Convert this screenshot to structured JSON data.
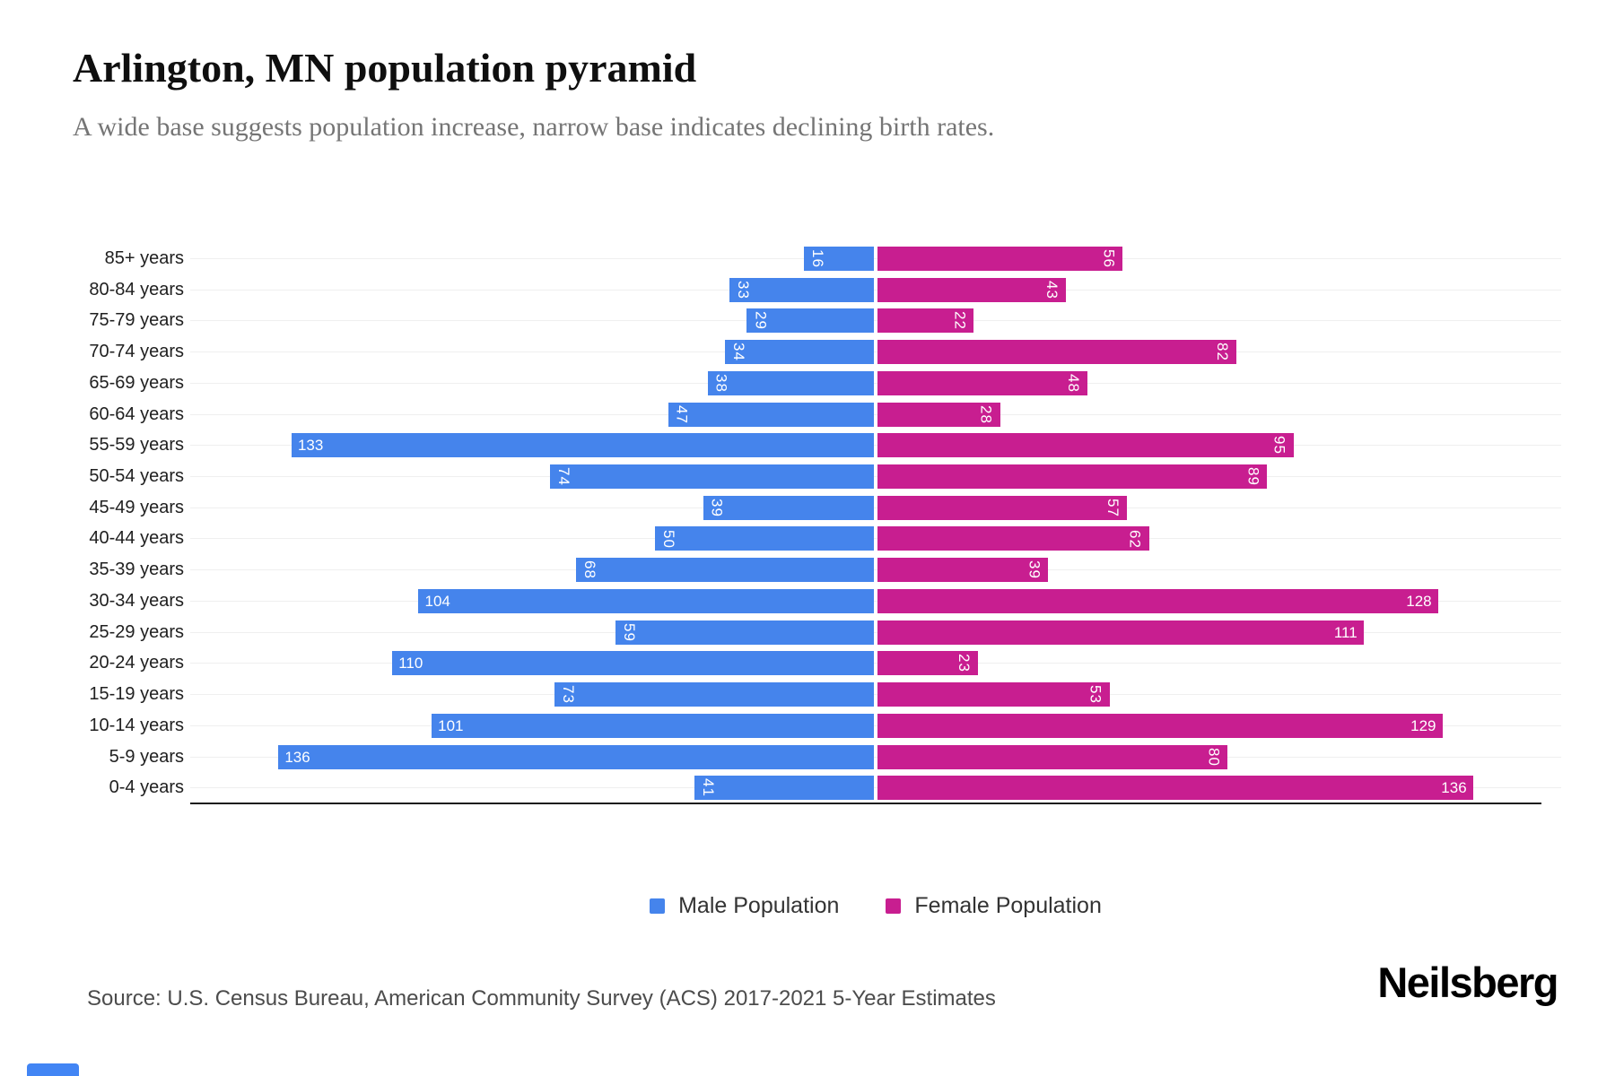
{
  "header": {
    "title": "Arlington, MN population pyramid",
    "subtitle": "A wide base suggests population increase, narrow base indicates declining birth rates."
  },
  "chart_data": {
    "type": "bar",
    "orientation": "horizontal population pyramid, males left / females right",
    "categories": [
      "85+ years",
      "80-84 years",
      "75-79 years",
      "70-74 years",
      "65-69 years",
      "60-64 years",
      "55-59 years",
      "50-54 years",
      "45-49 years",
      "40-44 years",
      "35-39 years",
      "30-34 years",
      "25-29 years",
      "20-24 years",
      "15-19 years",
      "10-14 years",
      "5-9 years",
      "0-4 years"
    ],
    "series": [
      {
        "name": "Male Population",
        "side": "left",
        "color": "#4584EC",
        "values": [
          16,
          33,
          29,
          34,
          38,
          47,
          133,
          74,
          39,
          50,
          68,
          104,
          59,
          110,
          73,
          101,
          136,
          41
        ]
      },
      {
        "name": "Female Population",
        "side": "right",
        "color": "#C81E90",
        "values": [
          56,
          43,
          22,
          82,
          48,
          28,
          95,
          89,
          57,
          62,
          39,
          128,
          111,
          23,
          53,
          129,
          80,
          136
        ]
      }
    ],
    "value_axis": {
      "max_per_side": 156,
      "tick_labels_visible": false
    },
    "grid": true,
    "legend_position": "bottom",
    "bar_value_labels": "white, inside outer end; 3-digit horizontal, 1-2 digit rotated 90deg"
  },
  "legend": {
    "items": [
      {
        "label": "Male Population",
        "color": "#4584EC"
      },
      {
        "label": "Female Population",
        "color": "#C81E90"
      }
    ]
  },
  "footer": {
    "source": "Source: U.S. Census Bureau, American Community Survey (ACS) 2017-2021 5-Year Estimates",
    "brand": "Neilsberg"
  },
  "colors": {
    "male": "#4584EC",
    "female": "#C81E90",
    "gridline": "#EFEFEF",
    "axis_line": "#1B1B1B",
    "title": "#0F0F0F",
    "subtitle": "#757575",
    "background": "#FFFFFF"
  }
}
